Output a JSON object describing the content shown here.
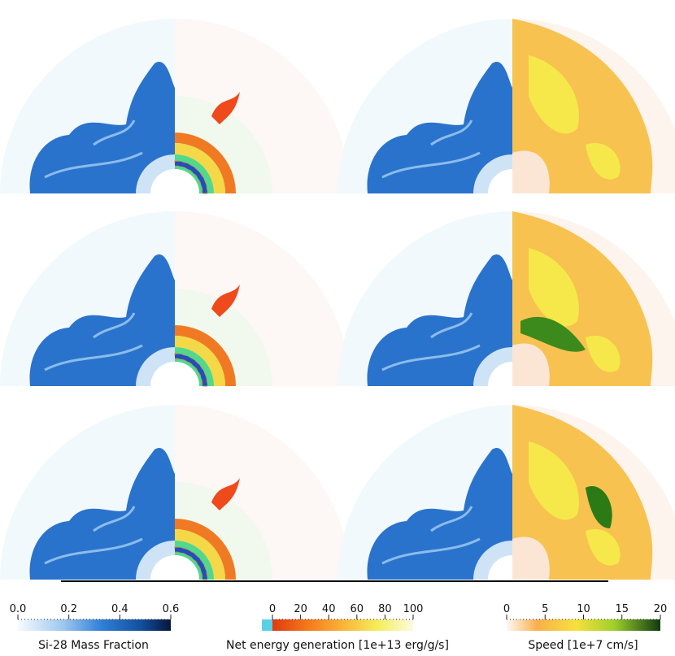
{
  "colorbars": [
    {
      "label": "Si-28 Mass Fraction",
      "range": [
        0,
        0.6
      ],
      "ticks": [
        {
          "value": 0,
          "label": "0.0"
        },
        {
          "value": 0.2,
          "label": "0.2"
        },
        {
          "value": 0.4,
          "label": "0.4"
        },
        {
          "value": 0.6,
          "label": "0.6"
        }
      ]
    },
    {
      "label": "Net energy generation [1e+13 erg/g/s]",
      "range": [
        0,
        100
      ],
      "ticks": [
        0,
        20,
        40,
        60,
        80,
        100
      ]
    },
    {
      "label": "Speed [1e+7 cm/s]",
      "range": [
        0,
        20
      ],
      "ticks": [
        0,
        5,
        10,
        15,
        20
      ]
    }
  ]
}
